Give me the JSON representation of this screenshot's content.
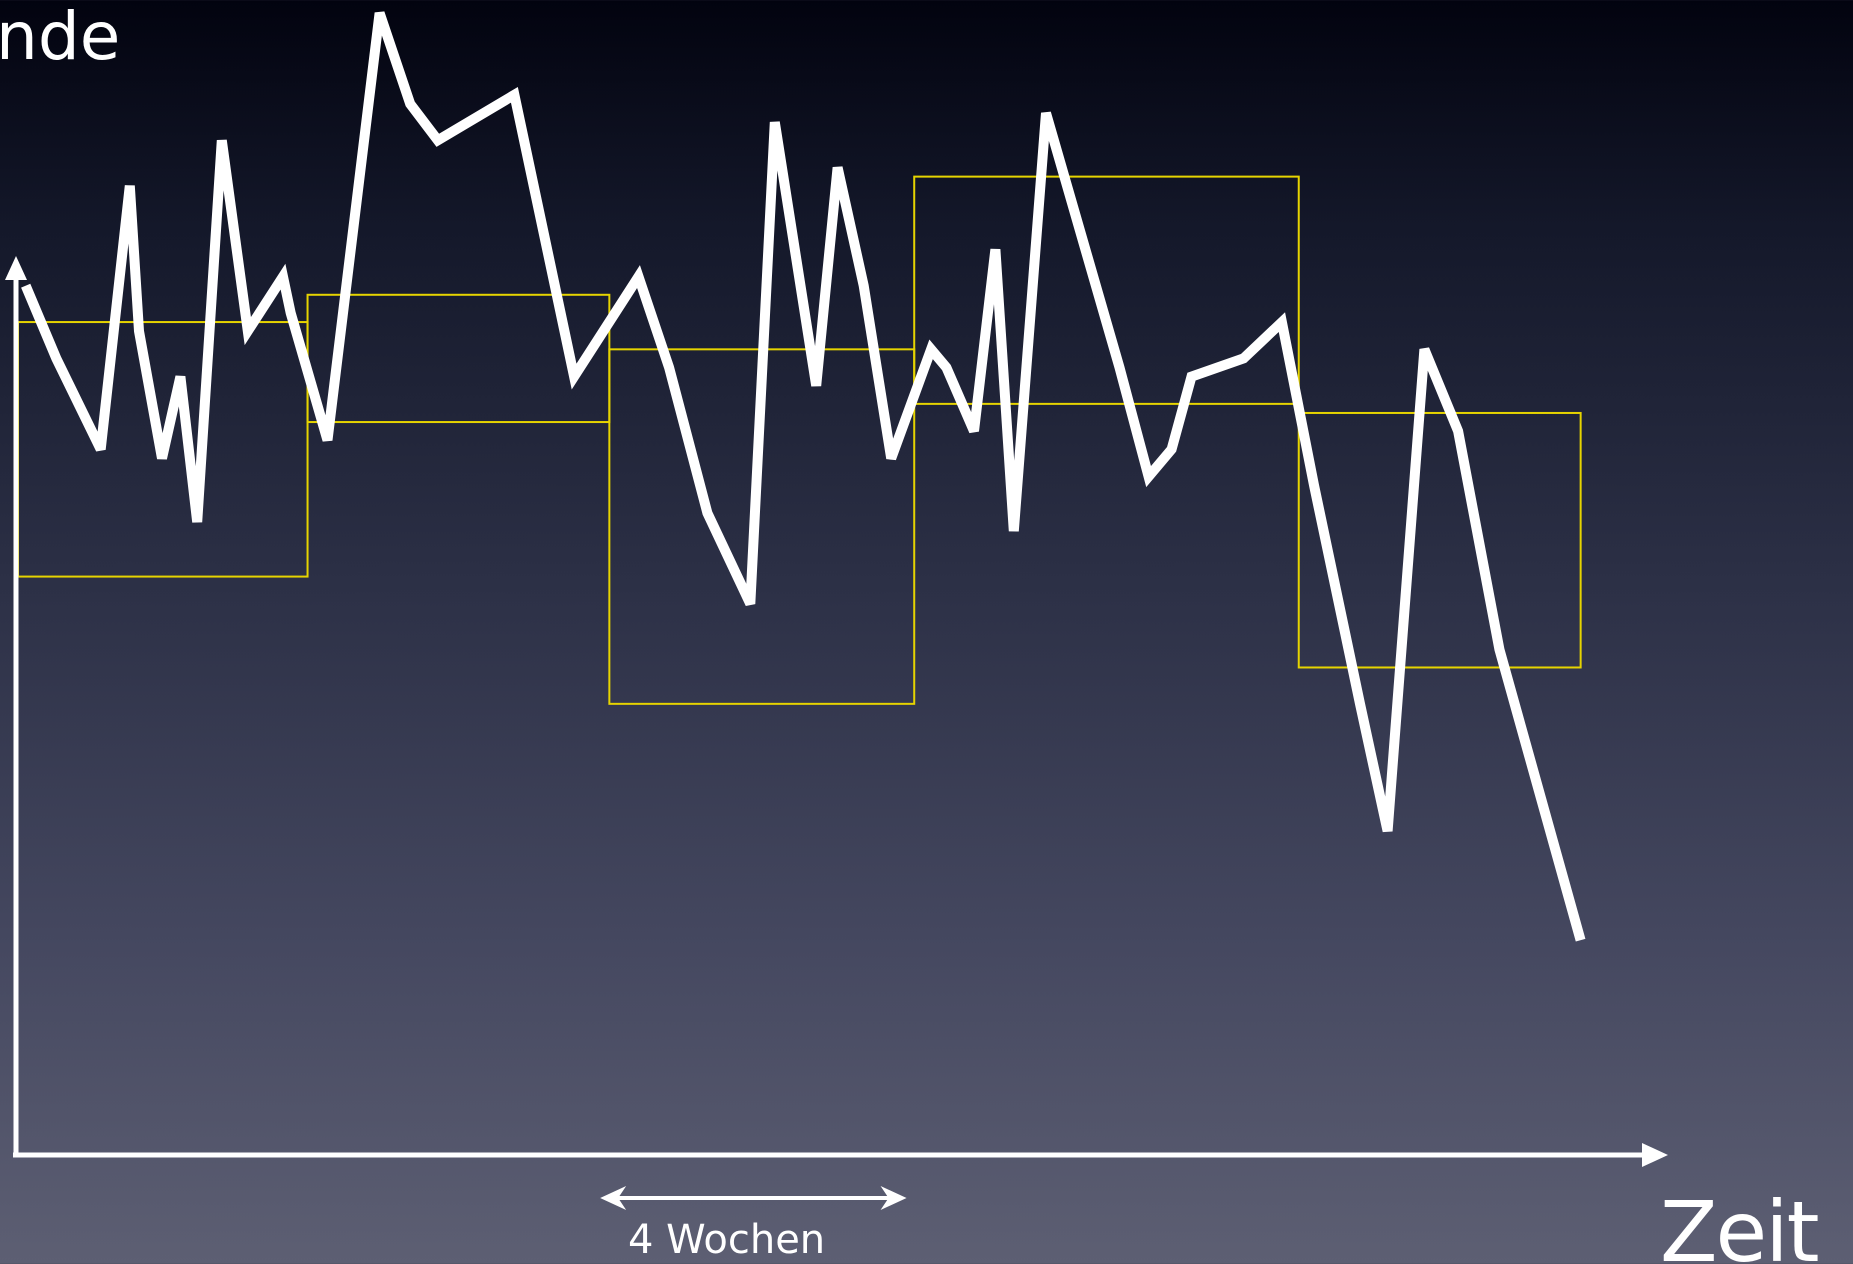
{
  "chart_data": {
    "type": "line",
    "ylabel": "nde",
    "xlabel": "Zeit",
    "xlim": [
      0,
      10
    ],
    "ylim": [
      0,
      10
    ],
    "grid": false,
    "legend": "none",
    "colors": {
      "line": "#ffffff",
      "windows": "#e6d400",
      "axes": "#ffffff",
      "background_top": "#02030f",
      "background_bottom": "#5d5f73"
    },
    "series": [
      {
        "x": [
          0.05,
          0.25,
          0.54,
          0.73,
          0.79,
          0.94,
          1.06,
          1.17,
          1.33,
          1.5,
          1.73,
          1.78,
          2.02,
          2.36,
          2.56,
          2.74,
          3.24,
          3.63,
          4.05,
          4.25,
          4.5,
          4.78,
          4.94,
          5.21,
          5.35,
          5.52,
          5.7,
          5.96,
          6.06,
          6.24,
          6.38,
          6.5,
          6.71,
          7.19,
          7.38,
          7.53,
          7.66,
          8.0,
          8.25,
          8.46,
          8.76,
          8.94,
          9.18,
          9.4,
          9.67,
          10.2
        ],
        "y": [
          7.0,
          6.2,
          5.2,
          8.1,
          6.5,
          5.1,
          6.0,
          4.4,
          8.6,
          6.5,
          7.1,
          6.7,
          5.3,
          10.0,
          9.0,
          8.6,
          9.1,
          6.0,
          7.1,
          6.1,
          4.5,
          3.5,
          8.8,
          5.9,
          8.3,
          7.0,
          5.1,
          6.3,
          6.1,
          5.4,
          7.4,
          4.3,
          8.9,
          6.1,
          4.9,
          5.2,
          6.0,
          6.2,
          6.6,
          4.8,
          2.4,
          1.0,
          6.3,
          5.4,
          3.0,
          -0.2
        ]
      }
    ],
    "windows": [
      {
        "x": [
          0,
          1.89
        ],
        "y": [
          3.8,
          6.6
        ]
      },
      {
        "x": [
          1.89,
          3.86
        ],
        "y": [
          5.5,
          6.9
        ]
      },
      {
        "x": [
          3.86,
          5.85
        ],
        "y": [
          2.4,
          6.3
        ]
      },
      {
        "x": [
          5.85,
          8.36
        ],
        "y": [
          5.7,
          8.2
        ]
      },
      {
        "x": [
          8.36,
          10.2
        ],
        "y": [
          2.8,
          5.6
        ]
      }
    ],
    "span": {
      "x": [
        3.8,
        5.8
      ],
      "label": "4 Wochen"
    }
  }
}
